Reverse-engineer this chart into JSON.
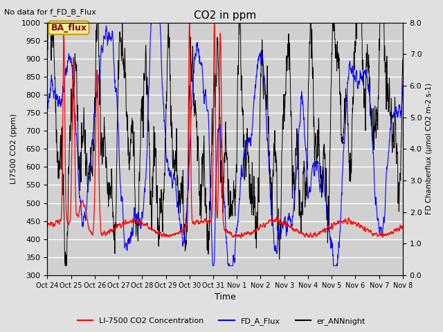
{
  "title": "CO2 in ppm",
  "top_left_text": "No data for f_FD_B_Flux",
  "annotation_box": "BA_flux",
  "ylabel_left": "LI7500 CO2 (ppm)",
  "ylabel_right": "FD Chamberflux (μmol CO2 m-2 s-1)",
  "xlabel": "Time",
  "ylim_left": [
    300,
    1000
  ],
  "ylim_right": [
    0.0,
    8.0
  ],
  "yticks_left": [
    300,
    350,
    400,
    450,
    500,
    550,
    600,
    650,
    700,
    750,
    800,
    850,
    900,
    950,
    1000
  ],
  "yticks_right": [
    0.0,
    1.0,
    2.0,
    3.0,
    4.0,
    5.0,
    6.0,
    7.0,
    8.0
  ],
  "xtick_labels": [
    "Oct 24",
    "Oct 25",
    "Oct 26",
    "Oct 27",
    "Oct 28",
    "Oct 29",
    "Oct 30",
    "Oct 31",
    "Nov 1",
    "Nov 2",
    "Nov 3",
    "Nov 4",
    "Nov 5",
    "Nov 6",
    "Nov 7",
    "Nov 8"
  ],
  "legend_entries": [
    "LI-7500 CO2 Concentration",
    "FD_A_Flux",
    "er_ANNnight"
  ],
  "bg_color": "#e0e0e0",
  "plot_bg_color": "#d0d0d0",
  "grid_color": "white",
  "n_points": 2000
}
